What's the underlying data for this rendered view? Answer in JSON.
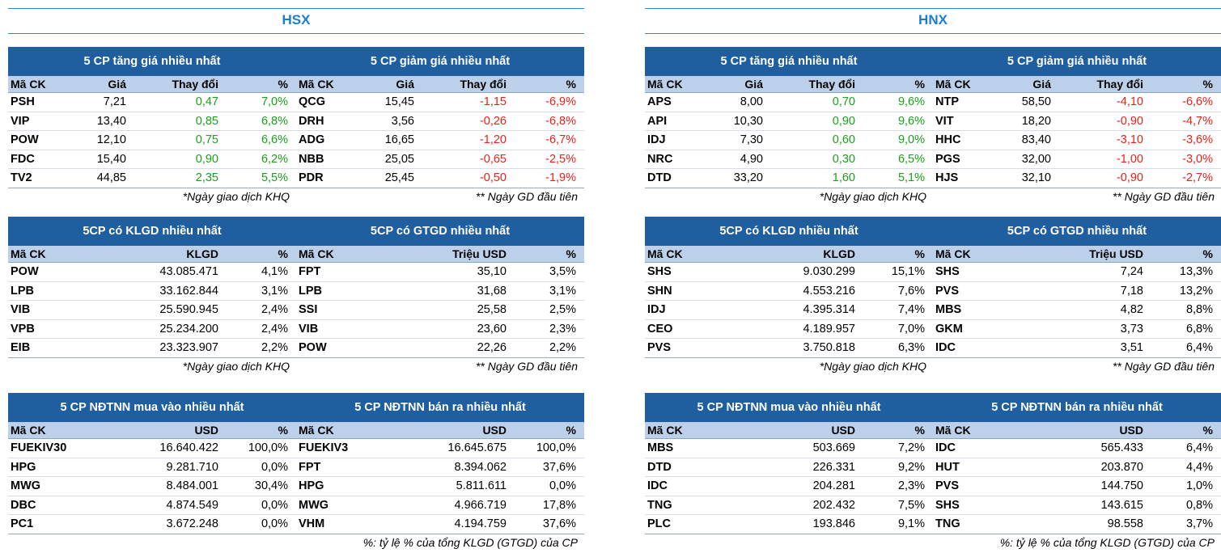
{
  "colors": {
    "header_bg": "#1f5fa0",
    "colhead_bg": "#bcd0ea",
    "up": "#1aa01a",
    "down": "#e8221a",
    "title": "#1a7fd0"
  },
  "exchanges": [
    {
      "name": "HSX",
      "notes1": [
        "*Ngày giao dịch KHQ",
        "** Ngày GD đầu tiên"
      ],
      "notes2": [
        "*Ngày giao dịch KHQ",
        "** Ngày GD đầu tiên"
      ],
      "notes3": [
        "",
        "%: tỷ lệ % của tổng KLGD (GTGD) của CP"
      ],
      "gainers": {
        "title": "5 CP tăng giá nhiều nhất",
        "cols": [
          "Mã CK",
          "Giá",
          "Thay đổi",
          "%"
        ],
        "rows": [
          [
            "PSH",
            "7,21",
            "0,47",
            "7,0%"
          ],
          [
            "VIP",
            "13,40",
            "0,85",
            "6,8%"
          ],
          [
            "POW",
            "12,10",
            "0,75",
            "6,6%"
          ],
          [
            "FDC",
            "15,40",
            "0,90",
            "6,2%"
          ],
          [
            "TV2",
            "44,85",
            "2,35",
            "5,5%"
          ]
        ]
      },
      "losers": {
        "title": "5 CP giảm giá nhiều nhất",
        "cols": [
          "Mã CK",
          "Giá",
          "Thay đổi",
          "%"
        ],
        "rows": [
          [
            "QCG",
            "15,45",
            "-1,15",
            "-6,9%"
          ],
          [
            "DRH",
            "3,56",
            "-0,26",
            "-6,8%"
          ],
          [
            "ADG",
            "16,65",
            "-1,20",
            "-6,7%"
          ],
          [
            "NBB",
            "25,05",
            "-0,65",
            "-2,5%"
          ],
          [
            "PDR",
            "25,45",
            "-0,50",
            "-1,9%"
          ]
        ]
      },
      "volume": {
        "title": "5CP có KLGD nhiều nhất",
        "cols": [
          "Mã CK",
          "KLGD",
          "%"
        ],
        "rows": [
          [
            "POW",
            "43.085.471",
            "4,1%"
          ],
          [
            "LPB",
            "33.162.844",
            "3,1%"
          ],
          [
            "VIB",
            "25.590.945",
            "2,4%"
          ],
          [
            "VPB",
            "25.234.200",
            "2,4%"
          ],
          [
            "EIB",
            "23.323.907",
            "2,2%"
          ]
        ]
      },
      "value": {
        "title": "5CP có GTGD nhiều nhất",
        "cols": [
          "Mã CK",
          "Triệu USD",
          "%"
        ],
        "rows": [
          [
            "FPT",
            "35,10",
            "3,5%"
          ],
          [
            "LPB",
            "31,68",
            "3,1%"
          ],
          [
            "SSI",
            "25,58",
            "2,5%"
          ],
          [
            "VIB",
            "23,60",
            "2,3%"
          ],
          [
            "POW",
            "22,26",
            "2,2%"
          ]
        ]
      },
      "foreign_buy": {
        "title": "5 CP NĐTNN mua vào nhiều nhất",
        "cols": [
          "Mã CK",
          "USD",
          "%"
        ],
        "rows": [
          [
            "FUEKIV30",
            "16.640.422",
            "100,0%"
          ],
          [
            "HPG",
            "9.281.710",
            "0,0%"
          ],
          [
            "MWG",
            "8.484.001",
            "30,4%"
          ],
          [
            "DBC",
            "4.874.549",
            "0,0%"
          ],
          [
            "PC1",
            "3.672.248",
            "0,0%"
          ]
        ]
      },
      "foreign_sell": {
        "title": "5 CP NĐTNN bán ra nhiều nhất",
        "cols": [
          "Mã CK",
          "USD",
          "%"
        ],
        "rows": [
          [
            "FUEKIV3",
            "16.645.675",
            "100,0%"
          ],
          [
            "FPT",
            "8.394.062",
            "37,6%"
          ],
          [
            "HPG",
            "5.811.611",
            "0,0%"
          ],
          [
            "MWG",
            "4.966.719",
            "17,8%"
          ],
          [
            "VHM",
            "4.194.759",
            "37,6%"
          ]
        ]
      }
    },
    {
      "name": "HNX",
      "notes1": [
        "*Ngày giao dịch KHQ",
        "** Ngày GD đầu tiên"
      ],
      "notes2": [
        "*Ngày giao dịch KHQ",
        "** Ngày GD đầu tiên"
      ],
      "notes3": [
        "",
        "%: tỷ lệ % của tổng KLGD (GTGD) của CP"
      ],
      "gainers": {
        "title": "5 CP tăng giá nhiều nhất",
        "cols": [
          "Mã CK",
          "Giá",
          "Thay đổi",
          "%"
        ],
        "rows": [
          [
            "APS",
            "8,00",
            "0,70",
            "9,6%"
          ],
          [
            "API",
            "10,30",
            "0,90",
            "9,6%"
          ],
          [
            "IDJ",
            "7,30",
            "0,60",
            "9,0%"
          ],
          [
            "NRC",
            "4,90",
            "0,30",
            "6,5%"
          ],
          [
            "DTD",
            "33,20",
            "1,60",
            "5,1%"
          ]
        ]
      },
      "losers": {
        "title": "5 CP giảm giá nhiều nhất",
        "cols": [
          "Mã CK",
          "Giá",
          "Thay đổi",
          "%"
        ],
        "rows": [
          [
            "NTP",
            "58,50",
            "-4,10",
            "-6,6%"
          ],
          [
            "VIT",
            "18,20",
            "-0,90",
            "-4,7%"
          ],
          [
            "HHC",
            "83,40",
            "-3,10",
            "-3,6%"
          ],
          [
            "PGS",
            "32,00",
            "-1,00",
            "-3,0%"
          ],
          [
            "HJS",
            "32,10",
            "-0,90",
            "-2,7%"
          ]
        ]
      },
      "volume": {
        "title": "5CP có KLGD nhiều nhất",
        "cols": [
          "Mã CK",
          "KLGD",
          "%"
        ],
        "rows": [
          [
            "SHS",
            "9.030.299",
            "15,1%"
          ],
          [
            "SHN",
            "4.553.216",
            "7,6%"
          ],
          [
            "IDJ",
            "4.395.314",
            "7,4%"
          ],
          [
            "CEO",
            "4.189.957",
            "7,0%"
          ],
          [
            "PVS",
            "3.750.818",
            "6,3%"
          ]
        ]
      },
      "value": {
        "title": "5CP có GTGD nhiều nhất",
        "cols": [
          "Mã CK",
          "Triệu USD",
          "%"
        ],
        "rows": [
          [
            "SHS",
            "7,24",
            "13,3%"
          ],
          [
            "PVS",
            "7,18",
            "13,2%"
          ],
          [
            "MBS",
            "4,82",
            "8,8%"
          ],
          [
            "GKM",
            "3,73",
            "6,8%"
          ],
          [
            "IDC",
            "3,51",
            "6,4%"
          ]
        ]
      },
      "foreign_buy": {
        "title": "5 CP NĐTNN mua vào nhiều nhất",
        "cols": [
          "Mã CK",
          "USD",
          "%"
        ],
        "rows": [
          [
            "MBS",
            "503.669",
            "7,2%"
          ],
          [
            "DTD",
            "226.331",
            "9,2%"
          ],
          [
            "IDC",
            "204.281",
            "2,3%"
          ],
          [
            "TNG",
            "202.432",
            "7,5%"
          ],
          [
            "PLC",
            "193.846",
            "9,1%"
          ]
        ]
      },
      "foreign_sell": {
        "title": "5 CP NĐTNN bán ra nhiều nhất",
        "cols": [
          "Mã CK",
          "USD",
          "%"
        ],
        "rows": [
          [
            "IDC",
            "565.433",
            "6,4%"
          ],
          [
            "HUT",
            "203.870",
            "4,4%"
          ],
          [
            "PVS",
            "144.750",
            "1,0%"
          ],
          [
            "SHS",
            "143.615",
            "0,8%"
          ],
          [
            "TNG",
            "98.558",
            "3,7%"
          ]
        ]
      }
    }
  ]
}
